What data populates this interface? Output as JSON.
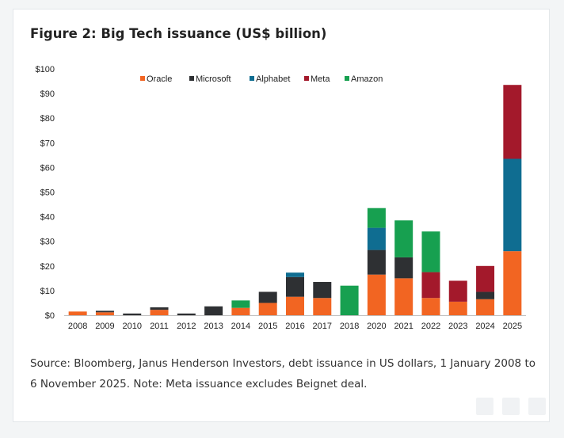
{
  "figure": {
    "title": "Figure 2: Big Tech issuance (US$ billion)",
    "source": "Source: Bloomberg, Janus Henderson Investors, debt issuance in US dollars, 1 January 2008 to 6 November 2025. Note: Meta issuance excludes Beignet deal."
  },
  "chart_data": {
    "type": "bar",
    "stacked": true,
    "categories": [
      "2008",
      "2009",
      "2010",
      "2011",
      "2012",
      "2013",
      "2014",
      "2015",
      "2016",
      "2017",
      "2018",
      "2020",
      "2021",
      "2022",
      "2023",
      "2024",
      "2025"
    ],
    "series": [
      {
        "name": "Oracle",
        "color": "#f26522",
        "values": [
          1.5,
          1.2,
          0,
          2.2,
          0,
          0,
          3.0,
          5.0,
          7.5,
          7.0,
          0,
          16.5,
          15.0,
          7.0,
          5.5,
          6.5,
          26.0
        ]
      },
      {
        "name": "Microsoft",
        "color": "#2e3033",
        "values": [
          0,
          0.6,
          0.7,
          1.0,
          0.7,
          3.6,
          0,
          4.5,
          8.0,
          6.5,
          0,
          10.0,
          8.5,
          0,
          0,
          3.0,
          0
        ]
      },
      {
        "name": "Alphabet",
        "color": "#0f6d91",
        "values": [
          0,
          0,
          0,
          0,
          0,
          0,
          0,
          0,
          1.8,
          0,
          0,
          9.0,
          0,
          0,
          0,
          0,
          37.5
        ]
      },
      {
        "name": "Meta",
        "color": "#a3192b",
        "values": [
          0,
          0,
          0,
          0,
          0,
          0,
          0,
          0,
          0,
          0,
          0,
          0,
          0,
          10.5,
          8.5,
          10.5,
          30.0
        ]
      },
      {
        "name": "Amazon",
        "color": "#17a050",
        "values": [
          0,
          0,
          0,
          0,
          0,
          0,
          3.0,
          0,
          0,
          0,
          12.0,
          8.0,
          15.0,
          16.5,
          0,
          0,
          0
        ]
      }
    ],
    "yticks": [
      "$0",
      "$10",
      "$20",
      "$30",
      "$40",
      "$50",
      "$60",
      "$70",
      "$80",
      "$90",
      "$100"
    ],
    "ylim": [
      0,
      100
    ],
    "grid": false,
    "legend_position": "top-center"
  }
}
